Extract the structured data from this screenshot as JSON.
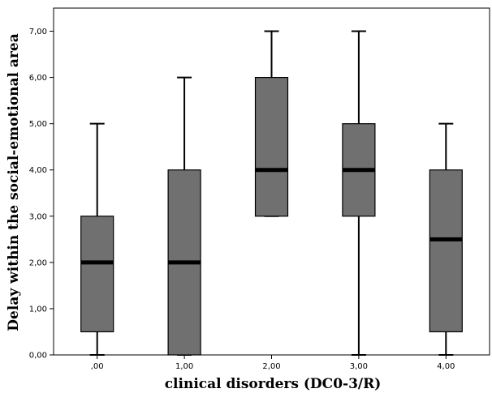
{
  "chart_data": {
    "type": "boxplot",
    "xlabel": "clinical disorders (DC0-3/R)",
    "ylabel": "Delay within the social-emotional area",
    "ylim": [
      0,
      7.5
    ],
    "yticks": [
      0,
      1,
      2,
      3,
      4,
      5,
      6,
      7
    ],
    "ytick_labels": [
      "0,00",
      "1,00",
      "2,00",
      "3,00",
      "4,00",
      "5,00",
      "6,00",
      "7,00"
    ],
    "categories": [
      ",00",
      "1,00",
      "2,00",
      "3,00",
      "4,00"
    ],
    "boxes": [
      {
        "min": 0,
        "q1": 0.5,
        "median": 2.0,
        "q3": 3.0,
        "max": 5.0
      },
      {
        "min": 0,
        "q1": 0.0,
        "median": 2.0,
        "q3": 4.0,
        "max": 6.0
      },
      {
        "min": 3.0,
        "q1": 3.0,
        "median": 4.0,
        "q3": 6.0,
        "max": 7.0
      },
      {
        "min": 0,
        "q1": 3.0,
        "median": 4.0,
        "q3": 5.0,
        "max": 7.0
      },
      {
        "min": 0,
        "q1": 0.5,
        "median": 2.5,
        "q3": 4.0,
        "max": 5.0
      }
    ],
    "box_fill": "#707070",
    "background": "#ffffff",
    "grid": false
  }
}
